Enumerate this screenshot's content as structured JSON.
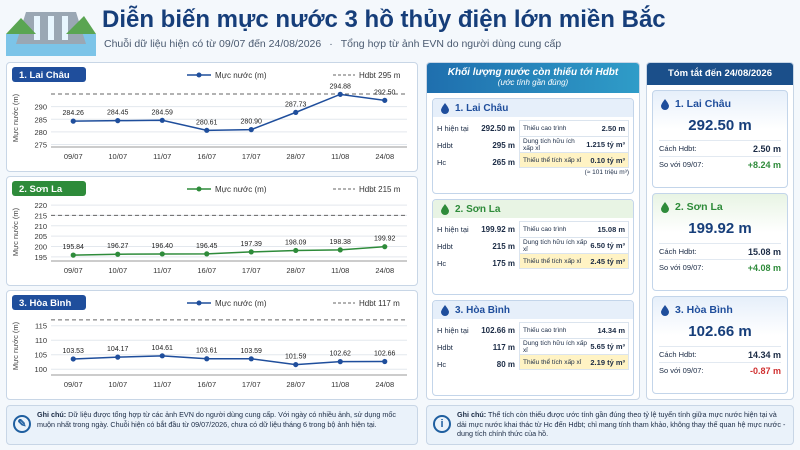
{
  "header": {
    "title": "Diễn biến mực nước 3 hồ thủy điện lớn miền Bắc",
    "subtitle": [
      "Chuỗi dữ liệu hiện có từ 09/07 đến 24/08/2026",
      "Tổng hợp từ ảnh EVN do người dùng cung cấp"
    ]
  },
  "chart_data": [
    {
      "type": "line",
      "title": "1. Lai Châu",
      "y_label": "Mực nước (m)",
      "color": "#1f4e9c",
      "categories": [
        "09/07",
        "10/07",
        "11/07",
        "16/07",
        "17/07",
        "28/07",
        "11/08",
        "24/08"
      ],
      "series": [
        {
          "name": "Mực nước (m)",
          "color": "#1f4e9c",
          "values": [
            284.26,
            284.45,
            284.59,
            280.61,
            280.9,
            287.73,
            294.88,
            292.5
          ],
          "value_labels": [
            "284.26",
            "284.45",
            "284.59",
            "280.61",
            "280.90",
            "287.73",
            "294.88",
            "292.50"
          ]
        }
      ],
      "reference": {
        "value": 295,
        "label": "Hdbt 295 m"
      },
      "ylim": [
        274,
        297
      ],
      "yticks": [
        275,
        280,
        285,
        290
      ],
      "grid": true
    },
    {
      "type": "line",
      "title": "2. Sơn La",
      "y_label": "Mực nước (m)",
      "color": "#2e8b3a",
      "categories": [
        "09/07",
        "10/07",
        "11/07",
        "16/07",
        "17/07",
        "28/07",
        "11/08",
        "24/08"
      ],
      "series": [
        {
          "name": "Mực nước (m)",
          "color": "#2e8b3a",
          "values": [
            195.84,
            196.27,
            196.4,
            196.45,
            197.39,
            198.09,
            198.38,
            199.92
          ],
          "value_labels": [
            "195.84",
            "196.27",
            "196.40",
            "196.45",
            "197.39",
            "198.09",
            "198.38",
            "199.92"
          ]
        }
      ],
      "reference": {
        "value": 215,
        "label": "Hdbt 215 m"
      },
      "ylim": [
        193,
        221
      ],
      "yticks": [
        195,
        200,
        205,
        210,
        215,
        220
      ],
      "grid": true
    },
    {
      "type": "line",
      "title": "3. Hòa Bình",
      "y_label": "Mực nước (m)",
      "color": "#1f4e9c",
      "categories": [
        "09/07",
        "10/07",
        "11/07",
        "16/07",
        "17/07",
        "28/07",
        "11/08",
        "24/08"
      ],
      "series": [
        {
          "name": "Mực nước (m)",
          "color": "#1f4e9c",
          "values": [
            103.53,
            104.17,
            104.61,
            103.61,
            103.59,
            101.59,
            102.62,
            102.66
          ],
          "value_labels": [
            "103.53",
            "104.17",
            "104.61",
            "103.61",
            "103.59",
            "101.59",
            "102.62",
            "102.66"
          ]
        }
      ],
      "reference": {
        "value": 117,
        "label": "Hdbt 117 m"
      },
      "ylim": [
        98,
        118
      ],
      "yticks": [
        100,
        105,
        110,
        115
      ],
      "grid": true
    }
  ],
  "shortfall": {
    "title": "Khối lượng nước còn thiếu tới Hdbt",
    "subtitle": "(ước tính gần đúng)",
    "reservoirs": [
      {
        "name": "1. Lai Châu",
        "color": "#1f4e9c",
        "tint": "#e6effa",
        "rows": [
          [
            "H hiện tại",
            "292.50 m"
          ],
          [
            "Hdbt",
            "295 m"
          ],
          [
            "Hc",
            "265 m"
          ]
        ],
        "details": [
          [
            "Thiếu cao trình",
            "2.50 m"
          ],
          [
            "Dung tích hữu ích xấp xỉ",
            "1.215 tỷ m³"
          ],
          [
            "Thiếu thể tích xấp xỉ",
            "0.10 tỷ m³"
          ]
        ],
        "note": "(≈ 101 triệu m³)"
      },
      {
        "name": "2. Sơn La",
        "color": "#2e8b3a",
        "tint": "#e8f4e4",
        "rows": [
          [
            "H hiện tại",
            "199.92 m"
          ],
          [
            "Hdbt",
            "215 m"
          ],
          [
            "Hc",
            "175 m"
          ]
        ],
        "details": [
          [
            "Thiếu cao trình",
            "15.08 m"
          ],
          [
            "Dung tích hữu ích xấp xỉ",
            "6.50 tỷ m³"
          ],
          [
            "Thiếu thể tích xấp xỉ",
            "2.45 tỷ m³"
          ]
        ]
      },
      {
        "name": "3. Hòa Bình",
        "color": "#1f4e9c",
        "tint": "#e6effa",
        "rows": [
          [
            "H hiện tại",
            "102.66 m"
          ],
          [
            "Hdbt",
            "117 m"
          ],
          [
            "Hc",
            "80 m"
          ]
        ],
        "details": [
          [
            "Thiếu cao trình",
            "14.34 m"
          ],
          [
            "Dung tích hữu ích xấp xỉ",
            "5.65 tỷ m³"
          ],
          [
            "Thiếu thể tích xấp xỉ",
            "2.19 tỷ m³"
          ]
        ]
      }
    ]
  },
  "summary": {
    "title": "Tóm tắt đến 24/08/2026",
    "reservoirs": [
      {
        "name": "1. Lai Châu",
        "color": "#1f4e9c",
        "tint": "#e6effa",
        "level": "292.50 m",
        "rows": [
          [
            "Cách Hdbt:",
            "2.50 m"
          ],
          [
            "So với 09/07:",
            "+8.24 m"
          ]
        ],
        "trend_color": "#2e8b3a"
      },
      {
        "name": "2. Sơn La",
        "color": "#2e8b3a",
        "tint": "#e8f4e4",
        "level": "199.92 m",
        "rows": [
          [
            "Cách Hdbt:",
            "15.08 m"
          ],
          [
            "So với 09/07:",
            "+4.08 m"
          ]
        ],
        "trend_color": "#2e8b3a"
      },
      {
        "name": "3. Hòa Bình",
        "color": "#1f4e9c",
        "tint": "#e6effa",
        "level": "102.66 m",
        "rows": [
          [
            "Cách Hdbt:",
            "14.34 m"
          ],
          [
            "So với 09/07:",
            "-0.87 m"
          ]
        ],
        "trend_color": "#d03030"
      }
    ]
  },
  "notes": [
    {
      "label": "Ghi chú:",
      "text": "Dữ liệu được tổng hợp từ các ảnh EVN do người dùng cung cấp. Với ngày có nhiều ảnh, sử dụng mốc muộn nhất trong ngày. Chuỗi hiện có bắt đầu từ 09/07/2026, chưa có dữ liệu tháng 6 trong bộ ảnh hiện tại."
    },
    {
      "label": "Ghi chú:",
      "text": "Thể tích còn thiếu được ước tính gần đúng theo tỷ lệ tuyến tính giữa mực nước hiện tại và dải mực nước khai thác từ Hc đến Hdbt; chỉ mang tính tham khảo, không thay thế quan hệ mực nước - dung tích chính thức của hồ."
    }
  ]
}
